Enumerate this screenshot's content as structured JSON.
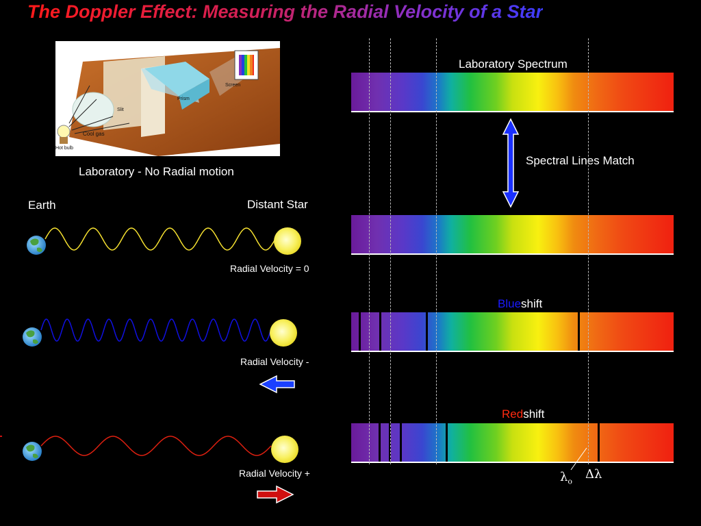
{
  "title": "The Doppler Effect: Measuring the Radial Velocity of a Star",
  "lab_figure": {
    "caption": "Laboratory - No Radial motion",
    "labels": {
      "screen": "Screen",
      "prism": "Prism",
      "slit": "Slit",
      "cool_gas": "Cool gas",
      "hot_bulb": "Hot bulb"
    }
  },
  "left": {
    "earth_label": "Earth",
    "star_label": "Distant Star",
    "rows": [
      {
        "velocity_label": "Radial Velocity = 0",
        "wave_color": "#f5e030",
        "arrow": "none"
      },
      {
        "velocity_label": "Radial Velocity -",
        "wave_color": "#1010e0",
        "arrow": "left",
        "arrow_color": "#1a40ff"
      },
      {
        "velocity_label": "Radial Velocity +",
        "wave_color": "#e02010",
        "arrow": "right",
        "arrow_color": "#d01010"
      }
    ]
  },
  "right": {
    "lab_spectrum_label": "Laboratory Spectrum",
    "match_label": "Spectral Lines Match",
    "match_arrow_color": "#1a30ff",
    "blueshift": {
      "colored": "Blue",
      "rest": "shift",
      "color": "#1a1aff"
    },
    "redshift": {
      "colored": "Red",
      "rest": "shift",
      "color": "#ff2a10"
    },
    "lambda_zero": "λ",
    "lambda_zero_sub": "o",
    "delta_lambda": "Δλ"
  }
}
